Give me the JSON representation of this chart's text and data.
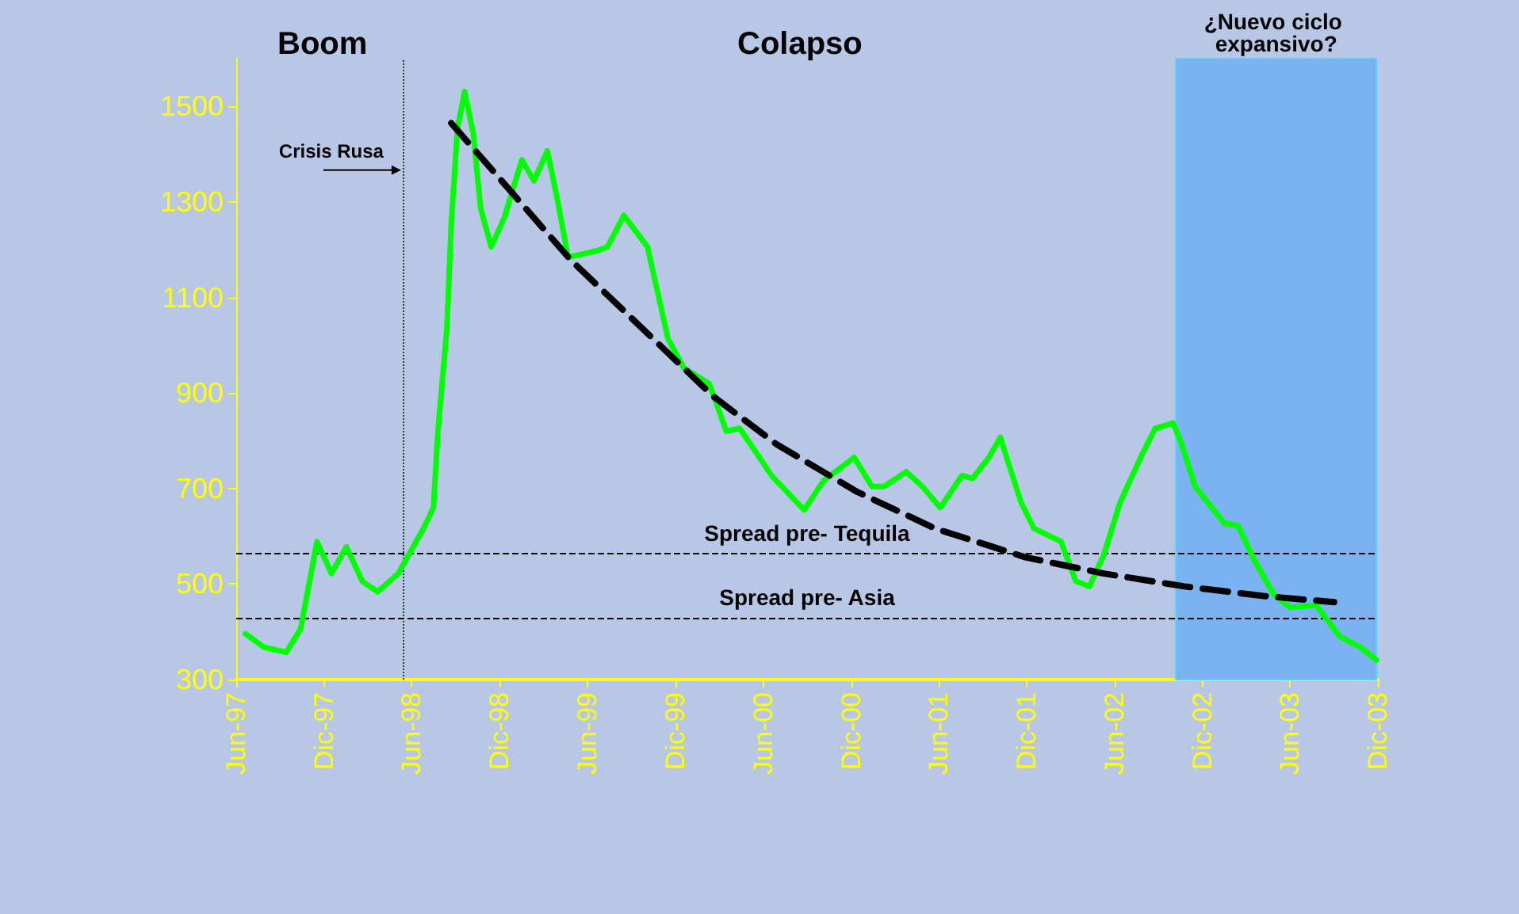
{
  "chart_data": {
    "type": "line",
    "annotations": [
      "Boom",
      "Colapso"
    ],
    "xlim": [
      "1997-06-01",
      "2003-12-01"
    ],
    "xticks": [
      {
        "value": "1997-06-01",
        "label": "Jun-97"
      },
      {
        "value": "1997-12-01",
        "label": "Dic-97"
      },
      {
        "value": "1998-06-01",
        "label": "Jun-98"
      },
      {
        "value": "1998-12-01",
        "label": "Dic-98"
      },
      {
        "value": "1999-06-01",
        "label": "Jun-99"
      },
      {
        "value": "1999-12-01",
        "label": "Dic-99"
      },
      {
        "value": "2000-06-01",
        "label": "Jun-00"
      },
      {
        "value": "2000-12-01",
        "label": "Dic-00"
      },
      {
        "value": "2001-06-01",
        "label": "Jun-01"
      },
      {
        "value": "2001-12-01",
        "label": "Dic-01"
      },
      {
        "value": "2002-06-01",
        "label": "Jun-02"
      },
      {
        "value": "2002-12-01",
        "label": "Dic-02"
      },
      {
        "value": "2003-06-01",
        "label": "Jun-03"
      },
      {
        "value": "2003-12-01",
        "label": "Dic-03"
      }
    ],
    "ylim": [
      300,
      1600
    ],
    "yticks": [
      300,
      500,
      700,
      900,
      1100,
      1300,
      1500
    ],
    "grid": false,
    "marker": "none",
    "series": [
      {
        "color": "#00ff00",
        "line_style": "solid",
        "x": [
          "1997-06-20",
          "1997-07-28",
          "1997-09-13",
          "1997-10-13",
          "1997-11-16",
          "1997-12-16",
          "1998-01-16",
          "1998-02-18",
          "1998-03-22",
          "1998-05-04",
          "1998-06-25",
          "1998-07-16",
          "1998-07-25",
          "1998-08-13",
          "1998-08-22",
          "1998-09-04",
          "1998-09-19",
          "1998-10-07",
          "1998-10-22",
          "1998-11-13",
          "1998-12-10",
          "1999-01-16",
          "1999-02-10",
          "1999-03-10",
          "1999-04-01",
          "1999-04-22",
          "1999-06-22",
          "1999-07-13",
          "1999-08-16",
          "1999-10-04",
          "1999-10-25",
          "1999-11-16",
          "1999-12-19",
          "2000-02-10",
          "2000-03-16",
          "2000-04-13",
          "2000-06-19",
          "2000-08-25",
          "2000-10-04",
          "2000-12-07",
          "2001-01-13",
          "2001-02-07",
          "2001-03-25",
          "2001-04-28",
          "2001-06-04",
          "2001-07-19",
          "2001-08-10",
          "2001-09-13",
          "2001-10-07",
          "2001-10-25",
          "2001-11-19",
          "2001-12-16",
          "2002-02-10",
          "2002-03-13",
          "2002-04-10",
          "2002-05-10",
          "2002-06-13",
          "2002-07-28",
          "2002-08-25",
          "2002-10-01",
          "2002-10-19",
          "2002-11-16",
          "2003-01-16",
          "2003-02-13",
          "2003-03-19",
          "2003-04-28",
          "2003-06-01",
          "2003-07-25",
          "2003-09-13",
          "2003-10-25",
          "2003-11-28"
        ],
        "values": [
          396,
          368,
          357,
          407,
          589,
          522,
          578,
          506,
          484,
          522,
          616,
          660,
          815,
          1035,
          1255,
          1454,
          1531,
          1443,
          1288,
          1206,
          1266,
          1388,
          1344,
          1407,
          1299,
          1184,
          1198,
          1206,
          1272,
          1206,
          1112,
          1013,
          952,
          919,
          820,
          826,
          726,
          655,
          716,
          765,
          704,
          704,
          735,
          704,
          660,
          727,
          721,
          765,
          807,
          749,
          671,
          616,
          589,
          506,
          495,
          561,
          671,
          770,
          826,
          837,
          793,
          704,
          627,
          622,
          550,
          479,
          451,
          456,
          390,
          368,
          341
        ]
      },
      {
        "color": "#000000",
        "line_style": "dashed",
        "x": [
          "1998-08-22",
          "1999-04-28",
          "2000-02-19",
          "2000-06-28",
          "2000-12-13",
          "2001-05-25",
          "2001-11-28",
          "2002-05-10",
          "2002-10-25",
          "2003-04-07",
          "2003-09-01"
        ],
        "values": [
          1465,
          1178,
          892,
          793,
          693,
          616,
          556,
          522,
          495,
          475,
          462
        ]
      }
    ],
    "ref_lines": [
      {
        "axis": "x",
        "value": "1998-05-13",
        "label": "Crisis Rusa",
        "line_style": "dotted",
        "color": "#333333"
      },
      {
        "axis": "y",
        "value": 563,
        "label": "Spread pre- Tequila",
        "line_style": "dashed",
        "color": "#000000"
      },
      {
        "axis": "y",
        "value": 429,
        "label": "Spread pre- Asia",
        "line_style": "dashed",
        "color": "#000000"
      }
    ],
    "bands": [
      {
        "axis": "x",
        "from": "2002-10-07",
        "to": "2003-11-28",
        "label": "¿Nuevo ciclo expansivo?",
        "color": "#7ab2f2"
      }
    ]
  }
}
